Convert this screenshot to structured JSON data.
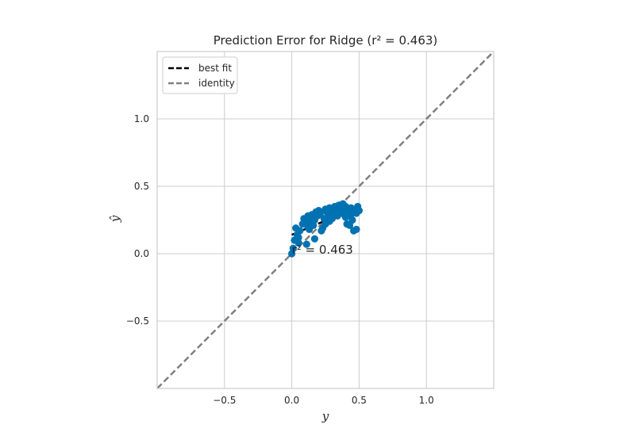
{
  "chart_data": {
    "type": "scatter",
    "title": "Prediction Error for Ridge (r² = 0.463)",
    "xlabel": "y",
    "ylabel": "ŷ",
    "xlim": [
      -1.0,
      1.5
    ],
    "ylim": [
      -1.0,
      1.5
    ],
    "xticks": [
      -0.5,
      0.0,
      0.5,
      1.0
    ],
    "yticks": [
      -0.5,
      0.0,
      0.5,
      1.0
    ],
    "xtick_labels": [
      "−0.5",
      "0.0",
      "0.5",
      "1.0"
    ],
    "ytick_labels": [
      "−0.5",
      "0.0",
      "0.5",
      "1.0"
    ],
    "grid": true,
    "legend_position": "top-left",
    "colors": {
      "points": "#0072b2",
      "best_fit": "#000000",
      "identity": "#808080",
      "grid": "#cccccc",
      "frame": "#cccccc"
    },
    "series": [
      {
        "name": "points",
        "kind": "scatter",
        "x": [
          0.0,
          0.01,
          0.02,
          0.03,
          0.04,
          0.05,
          0.06,
          0.08,
          0.09,
          0.1,
          0.11,
          0.12,
          0.13,
          0.14,
          0.15,
          0.16,
          0.17,
          0.18,
          0.19,
          0.2,
          0.21,
          0.22,
          0.23,
          0.24,
          0.25,
          0.26,
          0.27,
          0.28,
          0.29,
          0.3,
          0.31,
          0.32,
          0.33,
          0.34,
          0.35,
          0.36,
          0.37,
          0.38,
          0.39,
          0.4,
          0.41,
          0.42,
          0.43,
          0.44,
          0.45,
          0.46,
          0.47,
          0.48,
          0.49,
          0.5,
          0.05,
          0.09,
          0.13,
          0.17,
          0.21,
          0.25,
          0.3,
          0.35,
          0.4,
          0.45,
          0.48,
          0.12,
          0.18,
          0.28,
          0.38,
          0.43
        ],
        "y": [
          0.0,
          0.04,
          0.1,
          0.19,
          0.14,
          0.08,
          0.17,
          0.22,
          0.26,
          0.25,
          0.07,
          0.2,
          0.27,
          0.24,
          0.29,
          0.21,
          0.11,
          0.31,
          0.28,
          0.32,
          0.3,
          0.17,
          0.19,
          0.26,
          0.33,
          0.31,
          0.29,
          0.34,
          0.32,
          0.27,
          0.33,
          0.35,
          0.3,
          0.28,
          0.36,
          0.31,
          0.34,
          0.33,
          0.29,
          0.35,
          0.22,
          0.31,
          0.28,
          0.34,
          0.3,
          0.17,
          0.33,
          0.18,
          0.35,
          0.32,
          0.12,
          0.23,
          0.18,
          0.25,
          0.29,
          0.22,
          0.26,
          0.32,
          0.27,
          0.25,
          0.3,
          0.28,
          0.3,
          0.24,
          0.37,
          0.21
        ]
      },
      {
        "name": "best fit",
        "kind": "line",
        "x": [
          0.0,
          0.52
        ],
        "y": [
          0.14,
          0.36
        ]
      },
      {
        "name": "identity",
        "kind": "line",
        "x": [
          -1.0,
          1.5
        ],
        "y": [
          -1.0,
          1.5
        ]
      }
    ],
    "legend": [
      {
        "label": "best fit",
        "color": "#000000"
      },
      {
        "label": "identity",
        "color": "#808080"
      }
    ],
    "annotation": {
      "text": "r² = 0.463",
      "x": 0.0,
      "y": 0.0
    }
  }
}
